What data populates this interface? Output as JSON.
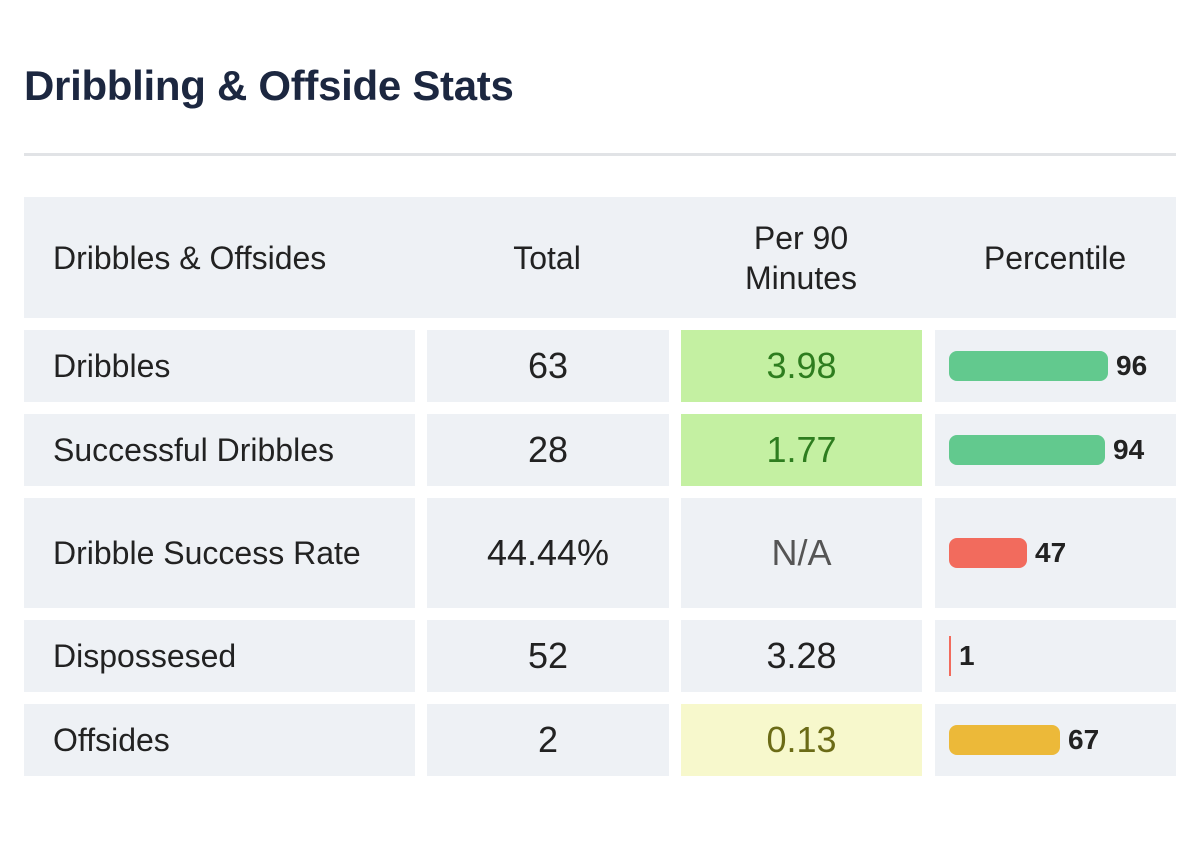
{
  "title": "Dribbling & Offside Stats",
  "table": {
    "headers": [
      "Dribbles & Offsides",
      "Total",
      "Per 90\nMinutes",
      "Percentile"
    ],
    "rows": [
      {
        "stat": "Dribbles",
        "total": "63",
        "per90": "3.98",
        "per90_bg": "#c4f0a2",
        "per90_color": "#2e7d1f",
        "percentile": 96,
        "percentile_label": "96",
        "bar_color": "#62c98e"
      },
      {
        "stat": "Successful Dribbles",
        "total": "28",
        "per90": "1.77",
        "per90_bg": "#c4f0a2",
        "per90_color": "#2e7d1f",
        "percentile": 94,
        "percentile_label": "94",
        "bar_color": "#62c98e"
      },
      {
        "stat": "Dribble Success Rate",
        "total": "44.44%",
        "per90": "N/A",
        "per90_bg": "#eef1f5",
        "per90_color": "#555555",
        "percentile": 47,
        "percentile_label": "47",
        "bar_color": "#f26b5d"
      },
      {
        "stat": "Dispossesed",
        "total": "52",
        "per90": "3.28",
        "per90_bg": "#eef1f5",
        "per90_color": "#222222",
        "percentile": 1,
        "percentile_label": "1",
        "bar_color": "#f26b5d"
      },
      {
        "stat": "Offsides",
        "total": "2",
        "per90": "0.13",
        "per90_bg": "#f7f8cc",
        "per90_color": "#6b6b16",
        "percentile": 67,
        "percentile_label": "67",
        "bar_color": "#ecb939"
      }
    ]
  }
}
